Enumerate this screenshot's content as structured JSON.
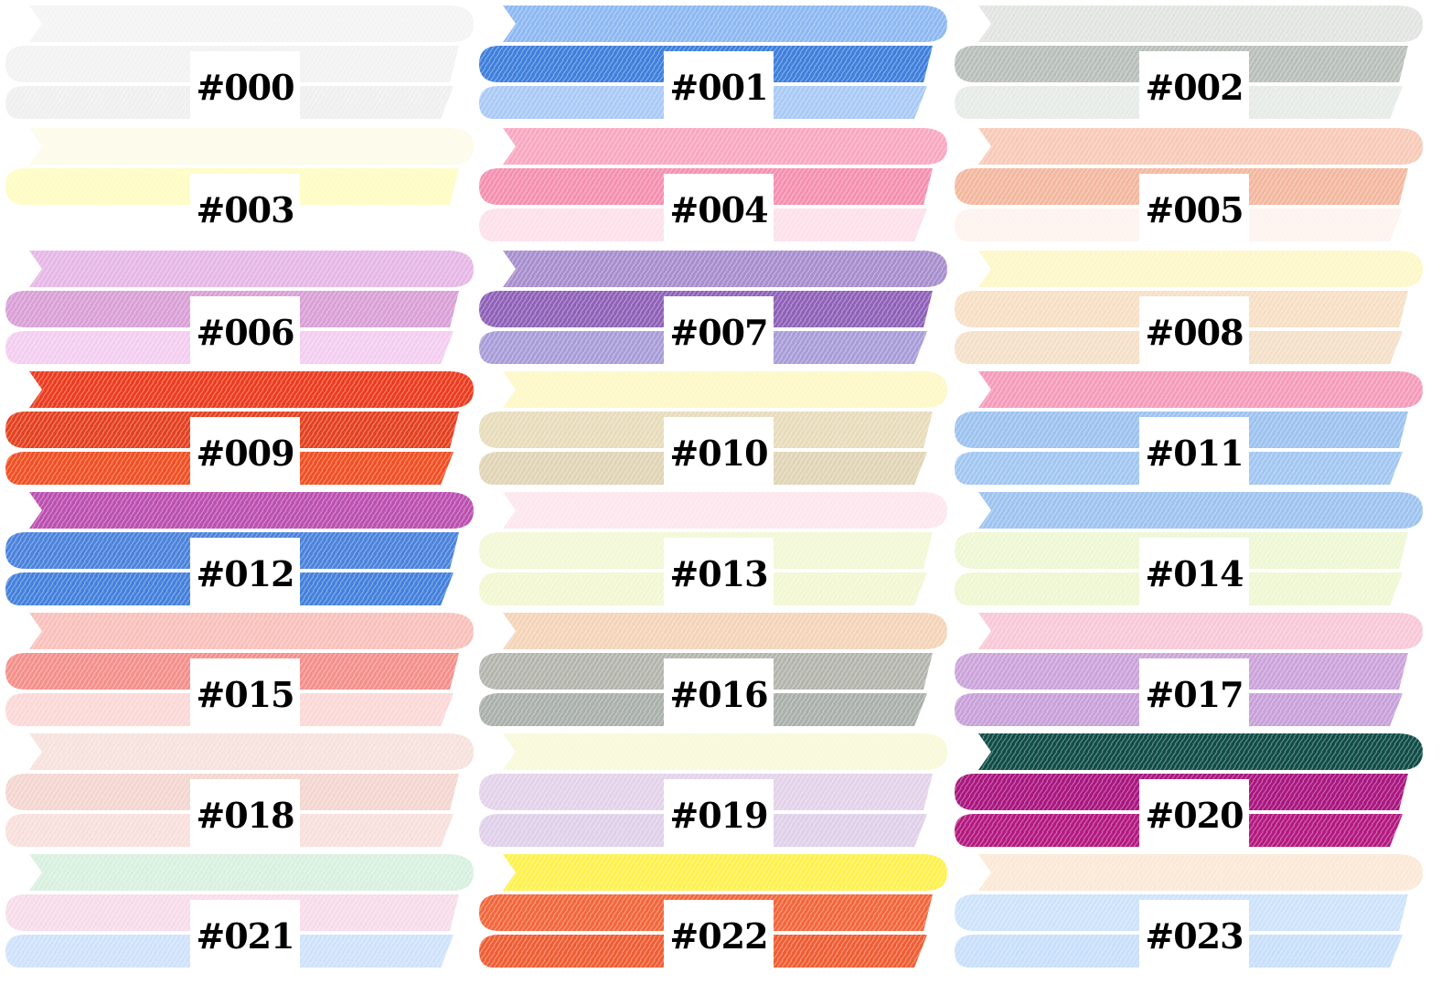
{
  "swatches": [
    {
      "code": "#000",
      "top": "#f4f4f4",
      "bottom": "#f2f2f2",
      "tint": "#efefef"
    },
    {
      "code": "#001",
      "top": "#8db8f2",
      "bottom": "#3e7fdb",
      "tint": "#a9c9f6"
    },
    {
      "code": "#002",
      "top": "#e2e4e2",
      "bottom": "#b8bfba",
      "tint": "#e6ebe7"
    },
    {
      "code": "#003",
      "top": "#fdfbe9",
      "bottom": "#fefcc2",
      "tint": "#ffffff"
    },
    {
      "code": "#004",
      "top": "#f9a7c1",
      "bottom": "#f58fb0",
      "tint": "#fde0ea"
    },
    {
      "code": "#005",
      "top": "#f7cab8",
      "bottom": "#f3b79e",
      "tint": "#fdf3ef"
    },
    {
      "code": "#006",
      "top": "#e6b7e6",
      "bottom": "#d99fd6",
      "tint": "#f3cdef"
    },
    {
      "code": "#007",
      "top": "#a78ecd",
      "bottom": "#8e60b8",
      "tint": "#a89cd8"
    },
    {
      "code": "#008",
      "top": "#fdf7c8",
      "bottom": "#f7dfc4",
      "tint": "#f4e0c8"
    },
    {
      "code": "#009",
      "top": "#ec3b1e",
      "bottom": "#e4401f",
      "tint": "#f14f23"
    },
    {
      "code": "#010",
      "top": "#fdf8c6",
      "bottom": "#e7dcba",
      "tint": "#e0d4b5"
    },
    {
      "code": "#011",
      "top": "#f59bb9",
      "bottom": "#9cc2ef",
      "tint": "#a1c6f1"
    },
    {
      "code": "#012",
      "top": "#bb4fb0",
      "bottom": "#4a82dc",
      "tint": "#4380dc"
    },
    {
      "code": "#013",
      "top": "#fde6ee",
      "bottom": "#f2f7d5",
      "tint": "#f2f7d2"
    },
    {
      "code": "#014",
      "top": "#9dc3f0",
      "bottom": "#eef7d4",
      "tint": "#eef7d1"
    },
    {
      "code": "#015",
      "top": "#f9c0bb",
      "bottom": "#f48f8a",
      "tint": "#fbd8d7"
    },
    {
      "code": "#016",
      "top": "#f4d4b8",
      "bottom": "#b3b5ad",
      "tint": "#a9afaa"
    },
    {
      "code": "#017",
      "top": "#f8c8d8",
      "bottom": "#cba3da",
      "tint": "#c7a0d9"
    },
    {
      "code": "#018",
      "top": "#f6e1dd",
      "bottom": "#f3d6cf",
      "tint": "#f8dfdc"
    },
    {
      "code": "#019",
      "top": "#f8f9d9",
      "bottom": "#e3d2ea",
      "tint": "#e0d0ea"
    },
    {
      "code": "#020",
      "top": "#0f4c46",
      "bottom": "#a9157f",
      "tint": "#b3187f"
    },
    {
      "code": "#021",
      "top": "#d8f0df",
      "bottom": "#f7dcea",
      "tint": "#cfe2fb"
    },
    {
      "code": "#022",
      "top": "#fff14d",
      "bottom": "#f2663b",
      "tint": "#ef5d33"
    },
    {
      "code": "#023",
      "top": "#fbe8d6",
      "bottom": "#cde2fb",
      "tint": "#c8dffb"
    }
  ]
}
